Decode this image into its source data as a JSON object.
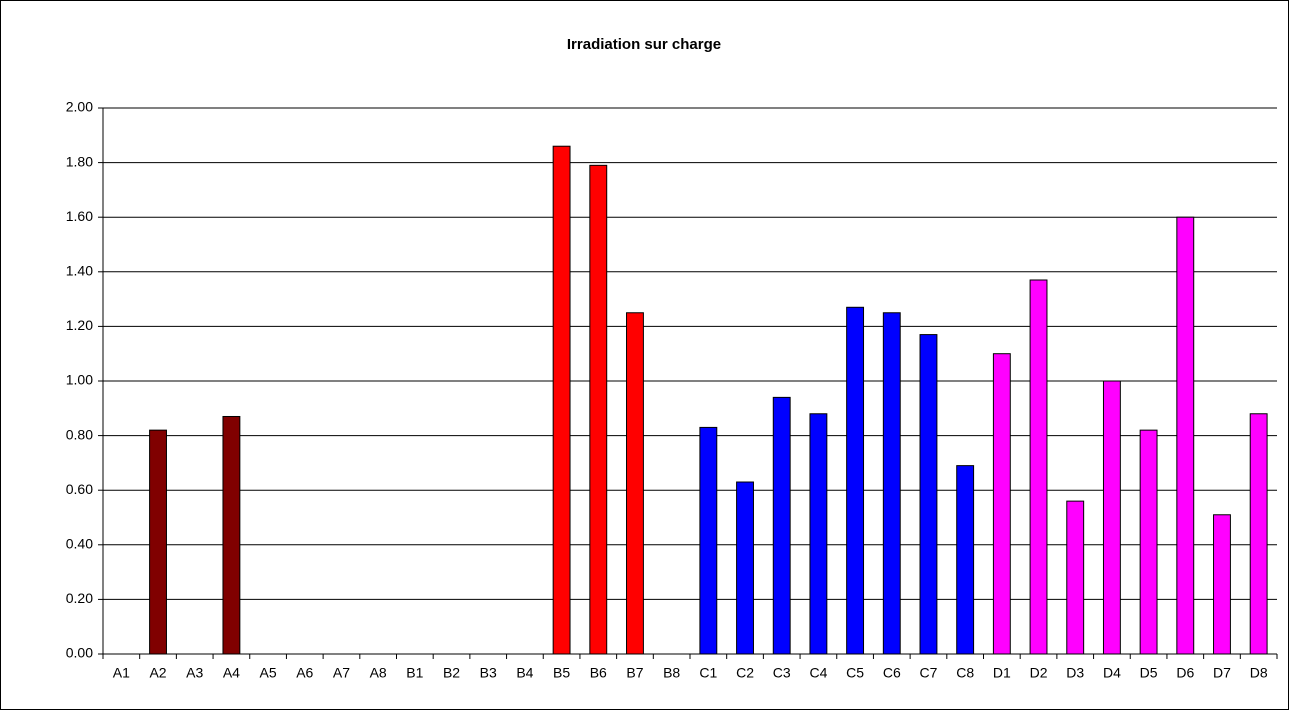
{
  "chart_data": {
    "type": "bar",
    "title": "Irradiation sur charge",
    "categories": [
      "A1",
      "A2",
      "A3",
      "A4",
      "A5",
      "A6",
      "A7",
      "A8",
      "B1",
      "B2",
      "B3",
      "B4",
      "B5",
      "B6",
      "B7",
      "B8",
      "C1",
      "C2",
      "C3",
      "C4",
      "C5",
      "C6",
      "C7",
      "C8",
      "D1",
      "D2",
      "D3",
      "D4",
      "D5",
      "D6",
      "D7",
      "D8"
    ],
    "values": [
      null,
      0.82,
      null,
      0.87,
      null,
      null,
      null,
      null,
      null,
      null,
      null,
      null,
      1.86,
      1.79,
      1.25,
      null,
      0.83,
      0.63,
      0.94,
      0.88,
      1.27,
      1.25,
      1.17,
      0.69,
      1.1,
      1.37,
      0.56,
      1.0,
      0.82,
      1.6,
      0.51,
      0.88
    ],
    "colors": [
      "#800000",
      "#800000",
      "#800000",
      "#800000",
      "#800000",
      "#800000",
      "#800000",
      "#800000",
      "#ff0000",
      "#ff0000",
      "#ff0000",
      "#ff0000",
      "#ff0000",
      "#ff0000",
      "#ff0000",
      "#ff0000",
      "#0000ff",
      "#0000ff",
      "#0000ff",
      "#0000ff",
      "#0000ff",
      "#0000ff",
      "#0000ff",
      "#0000ff",
      "#ff00ff",
      "#ff00ff",
      "#ff00ff",
      "#ff00ff",
      "#ff00ff",
      "#ff00ff",
      "#ff00ff",
      "#ff00ff"
    ],
    "ylim": [
      0,
      2
    ],
    "yticks": [
      {
        "value": 0,
        "label": "0.00"
      },
      {
        "value": 0.2,
        "label": "0.20"
      },
      {
        "value": 0.4,
        "label": "0.40"
      },
      {
        "value": 0.6,
        "label": "0.60"
      },
      {
        "value": 0.8,
        "label": "0.80"
      },
      {
        "value": 1,
        "label": "1.00"
      },
      {
        "value": 1.2,
        "label": "1.20"
      },
      {
        "value": 1.4,
        "label": "1.40"
      },
      {
        "value": 1.6,
        "label": "1.60"
      },
      {
        "value": 1.8,
        "label": "1.80"
      },
      {
        "value": 2,
        "label": "2.00"
      }
    ],
    "grid": true
  }
}
